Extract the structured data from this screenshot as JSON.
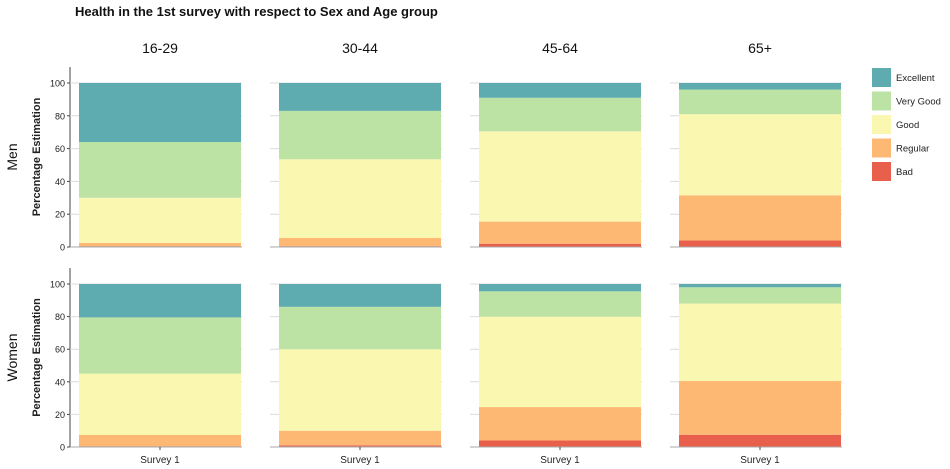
{
  "chart_data": {
    "type": "bar",
    "stacked": true,
    "title": "Health in the 1st survey with respect to Sex and Age group",
    "ylabel": "Percentage Estimation",
    "ylim": [
      0,
      100
    ],
    "yticks": [
      0,
      20,
      40,
      60,
      80,
      100
    ],
    "categories": [
      "Survey 1"
    ],
    "columns": [
      "16-29",
      "30-44",
      "45-64",
      "65+"
    ],
    "rows": [
      "Men",
      "Women"
    ],
    "legend": {
      "position": "right",
      "items": [
        {
          "name": "Excellent",
          "color": "#5eabb0"
        },
        {
          "name": "Very Good",
          "color": "#bde3a4"
        },
        {
          "name": "Good",
          "color": "#faf7b0"
        },
        {
          "name": "Regular",
          "color": "#fdb974"
        },
        {
          "name": "Bad",
          "color": "#e8604b"
        }
      ]
    },
    "stack_order_bottom_to_top": [
      "Bad",
      "Regular",
      "Good",
      "Very Good",
      "Excellent"
    ],
    "panels": [
      {
        "row": "Men",
        "column": "16-29",
        "values": {
          "Bad": 0.5,
          "Regular": 2,
          "Good": 27.5,
          "Very Good": 34,
          "Excellent": 36
        }
      },
      {
        "row": "Men",
        "column": "30-44",
        "values": {
          "Bad": 0.5,
          "Regular": 5,
          "Good": 48,
          "Very Good": 29.5,
          "Excellent": 17
        }
      },
      {
        "row": "Men",
        "column": "45-64",
        "values": {
          "Bad": 2,
          "Regular": 13.5,
          "Good": 55,
          "Very Good": 20.5,
          "Excellent": 9
        }
      },
      {
        "row": "Men",
        "column": "65+",
        "values": {
          "Bad": 4,
          "Regular": 27.5,
          "Good": 49.5,
          "Very Good": 15,
          "Excellent": 4
        }
      },
      {
        "row": "Women",
        "column": "16-29",
        "values": {
          "Bad": 0.5,
          "Regular": 7,
          "Good": 37.5,
          "Very Good": 34.5,
          "Excellent": 20.5
        }
      },
      {
        "row": "Women",
        "column": "30-44",
        "values": {
          "Bad": 1,
          "Regular": 9,
          "Good": 50,
          "Very Good": 26,
          "Excellent": 14
        }
      },
      {
        "row": "Women",
        "column": "45-64",
        "values": {
          "Bad": 4,
          "Regular": 20.5,
          "Good": 55.5,
          "Very Good": 15.5,
          "Excellent": 4.5
        }
      },
      {
        "row": "Women",
        "column": "65+",
        "values": {
          "Bad": 7.5,
          "Regular": 33,
          "Good": 47.5,
          "Very Good": 10,
          "Excellent": 2
        }
      }
    ]
  }
}
